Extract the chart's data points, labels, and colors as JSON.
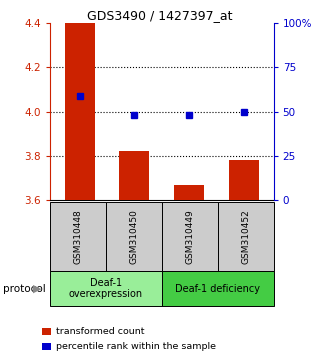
{
  "title": "GDS3490 / 1427397_at",
  "samples": [
    "GSM310448",
    "GSM310450",
    "GSM310449",
    "GSM310452"
  ],
  "bar_values": [
    4.4,
    3.82,
    3.67,
    3.78
  ],
  "dot_values": [
    4.07,
    3.985,
    3.983,
    4.0
  ],
  "ylim": [
    3.6,
    4.4
  ],
  "yticks_left": [
    3.6,
    3.8,
    4.0,
    4.2,
    4.4
  ],
  "yticks_right": [
    0,
    25,
    50,
    75,
    100
  ],
  "yticks_right_labels": [
    "0",
    "25",
    "50",
    "75",
    "100%"
  ],
  "bar_color": "#cc2200",
  "dot_color": "#0000cc",
  "bar_bottom": 3.6,
  "groups": [
    {
      "label": "Deaf-1\noverexpression",
      "n": 2,
      "color": "#99ee99"
    },
    {
      "label": "Deaf-1 deficiency",
      "n": 2,
      "color": "#44cc44"
    }
  ],
  "protocol_label": "protocol",
  "legend": [
    {
      "color": "#cc2200",
      "label": "transformed count"
    },
    {
      "color": "#0000cc",
      "label": "percentile rank within the sample"
    }
  ],
  "bg_color": "#ffffff",
  "sample_bg": "#cccccc",
  "grid_dotted_at": [
    3.8,
    4.0,
    4.2
  ]
}
